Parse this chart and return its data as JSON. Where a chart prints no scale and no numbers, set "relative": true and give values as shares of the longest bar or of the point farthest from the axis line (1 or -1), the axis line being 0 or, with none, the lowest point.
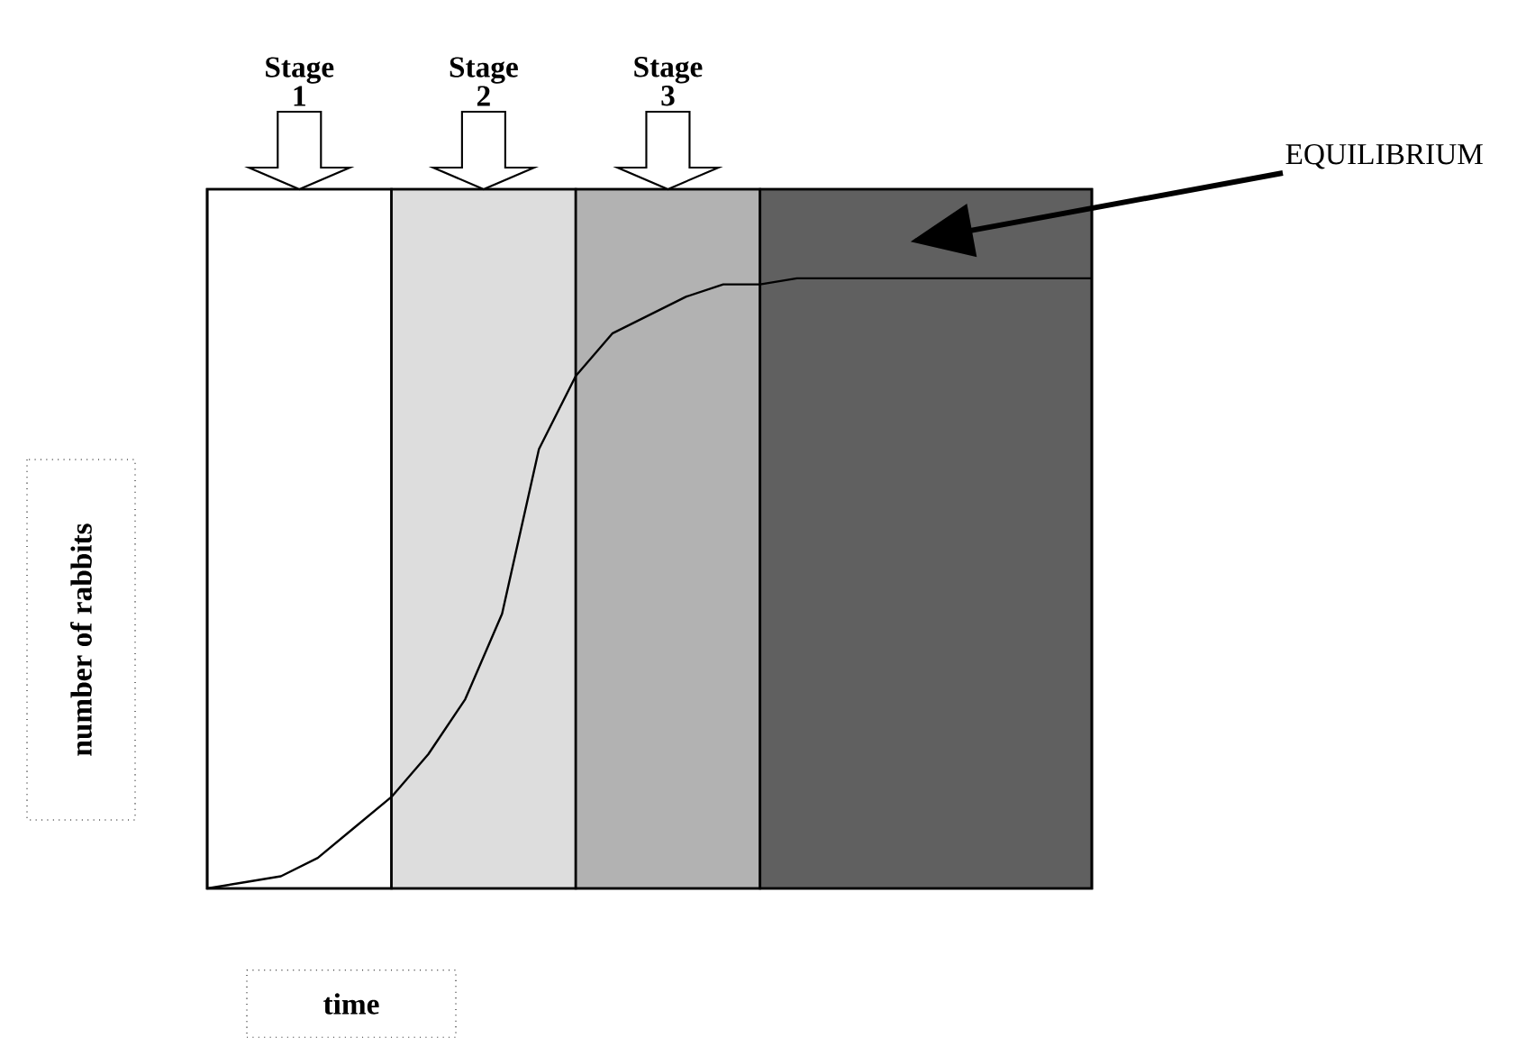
{
  "chart_data": {
    "type": "line",
    "relative": true,
    "categories": [
      null,
      null,
      null,
      null,
      null,
      null,
      null,
      null,
      null,
      null,
      null,
      null,
      null,
      null,
      null,
      null,
      null,
      null,
      null,
      null,
      null,
      null,
      null,
      null,
      null
    ],
    "series": [
      {
        "color": "#000000",
        "values": [
          0,
          0.01,
          0.02,
          0.05,
          0.1,
          0.15,
          0.22,
          0.31,
          0.45,
          0.72,
          0.84,
          0.91,
          0.94,
          0.97,
          0.99,
          0.99,
          1,
          1,
          1,
          1,
          1,
          1,
          1,
          1,
          1
        ]
      }
    ],
    "annotations": [
      "Stage 1",
      "Stage 2",
      "Stage 3",
      "EQUILIBRIUM",
      "number of rabbits",
      "time"
    ]
  }
}
